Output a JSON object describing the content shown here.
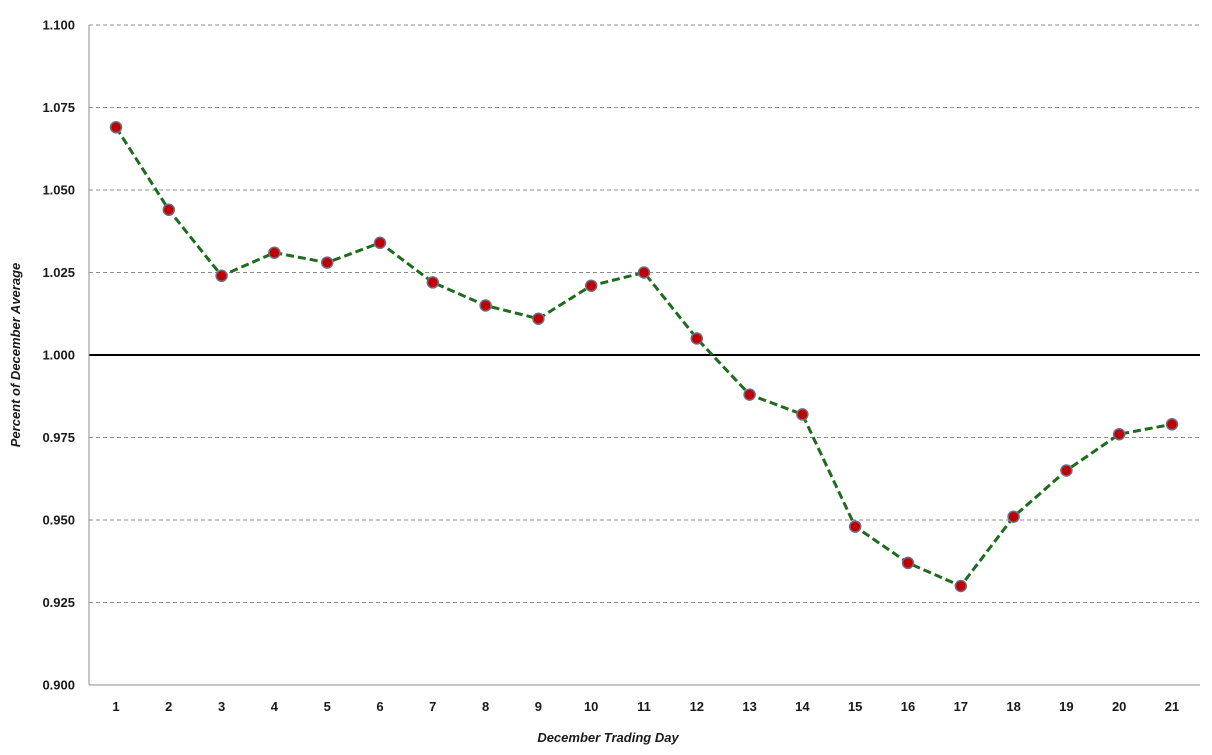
{
  "chart_data": {
    "type": "line",
    "title": "",
    "xlabel": "December Trading Day",
    "ylabel": "Percent of December Average",
    "x": [
      1,
      2,
      3,
      4,
      5,
      6,
      7,
      8,
      9,
      10,
      11,
      12,
      13,
      14,
      15,
      16,
      17,
      18,
      19,
      20,
      21
    ],
    "x_tick_labels": [
      "1",
      "2",
      "3",
      "4",
      "5",
      "6",
      "7",
      "8",
      "9",
      "10",
      "11",
      "12",
      "13",
      "14",
      "15",
      "16",
      "17",
      "18",
      "19",
      "20",
      "21"
    ],
    "ylim": [
      0.9,
      1.1
    ],
    "y_ticks": [
      0.9,
      0.925,
      0.95,
      0.975,
      1.0,
      1.025,
      1.05,
      1.075,
      1.1
    ],
    "y_tick_labels": [
      "0.900",
      "0.925",
      "0.950",
      "0.975",
      "1.000",
      "1.025",
      "1.050",
      "1.075",
      "1.100"
    ],
    "reference_line": 1.0,
    "grid": "horizontal dashed",
    "series": [
      {
        "values": [
          1.069,
          1.044,
          1.024,
          1.031,
          1.028,
          1.034,
          1.022,
          1.015,
          1.011,
          1.021,
          1.025,
          1.005,
          0.988,
          0.982,
          0.948,
          0.937,
          0.93,
          0.951,
          0.965,
          0.976,
          0.979
        ],
        "line_color": "#1e6b1e",
        "marker_color": "#c00000",
        "marker_edge": "#6e6e8a"
      }
    ]
  }
}
